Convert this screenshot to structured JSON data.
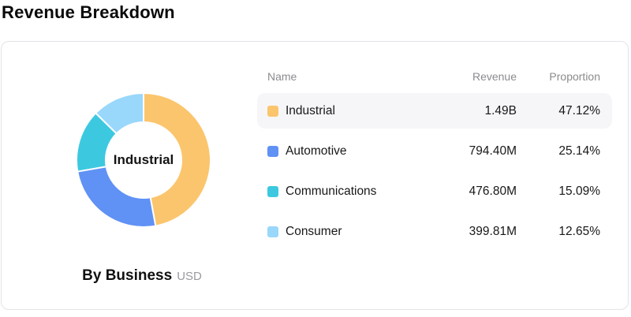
{
  "page": {
    "title": "Revenue Breakdown"
  },
  "chart_data": {
    "type": "pie",
    "subtype": "donut",
    "title": "Revenue Breakdown",
    "center_label": "Industrial",
    "caption": "By Business",
    "caption_unit": "USD",
    "categories": [
      "Industrial",
      "Automotive",
      "Communications",
      "Consumer"
    ],
    "proportions_pct": [
      47.12,
      25.14,
      15.09,
      12.65
    ],
    "revenues_display": [
      "1.49B",
      "794.40M",
      "476.80M",
      "399.81M"
    ],
    "colors": [
      "#FBC56D",
      "#6091F5",
      "#3CC9E0",
      "#99D7FB"
    ],
    "start_angle_deg": -90,
    "direction": "clockwise",
    "legend_position": "right-table"
  },
  "table": {
    "headers": {
      "name": "Name",
      "revenue": "Revenue",
      "proportion": "Proportion"
    },
    "rows": [
      {
        "name": "Industrial",
        "revenue": "1.49B",
        "proportion": "47.12%",
        "color": "#FBC56D",
        "highlighted": true
      },
      {
        "name": "Automotive",
        "revenue": "794.40M",
        "proportion": "25.14%",
        "color": "#6091F5",
        "highlighted": false
      },
      {
        "name": "Communications",
        "revenue": "476.80M",
        "proportion": "15.09%",
        "color": "#3CC9E0",
        "highlighted": false
      },
      {
        "name": "Consumer",
        "revenue": "399.81M",
        "proportion": "12.65%",
        "color": "#99D7FB",
        "highlighted": false
      }
    ]
  }
}
